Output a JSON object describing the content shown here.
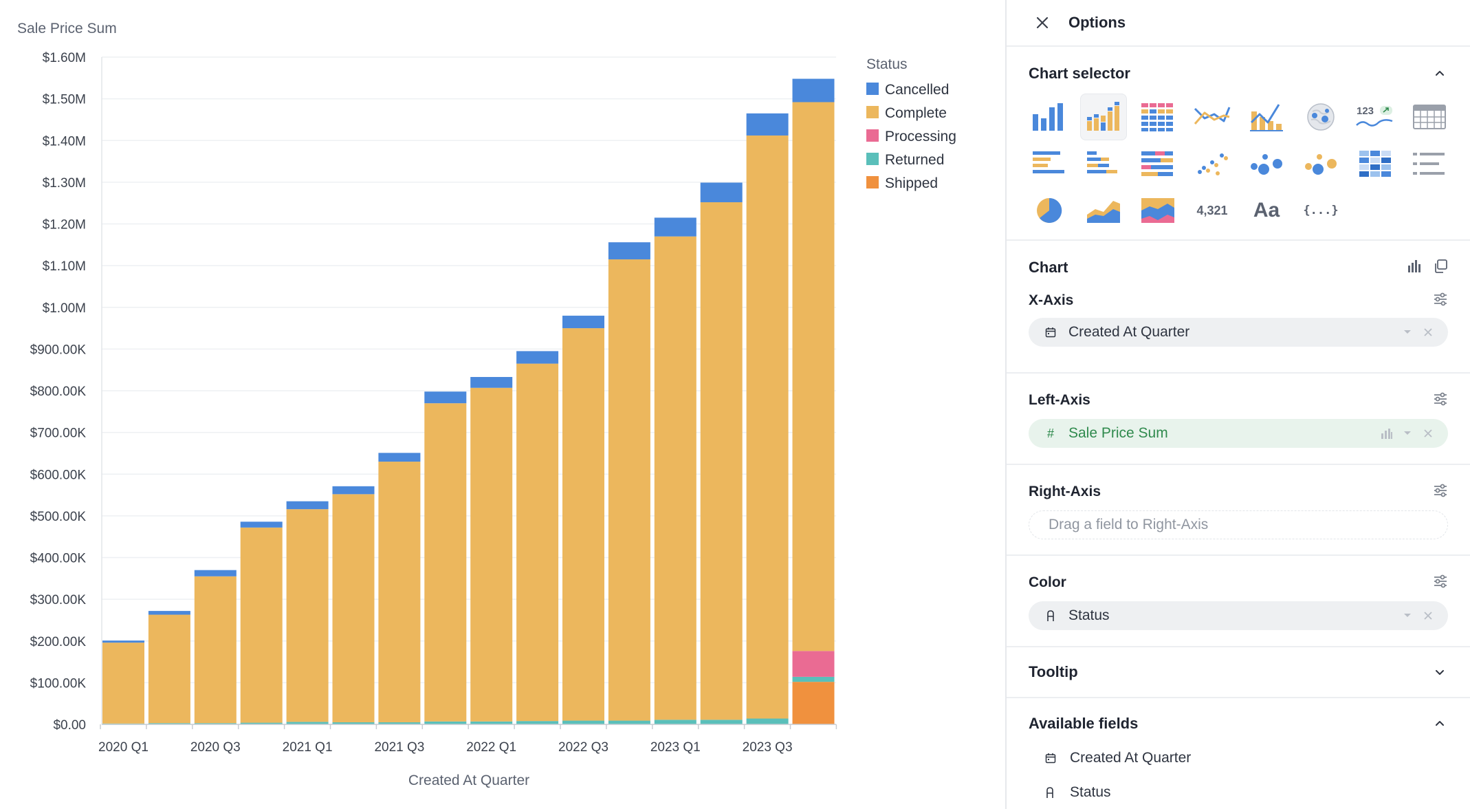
{
  "chart_data": {
    "type": "bar",
    "stacked": true,
    "title": "Sale Price Sum",
    "xlabel": "Created At Quarter",
    "ylabel": "Sale Price Sum",
    "ylim": [
      0,
      1600000
    ],
    "yticks": [
      "$0.00",
      "$100.00K",
      "$200.00K",
      "$300.00K",
      "$400.00K",
      "$500.00K",
      "$600.00K",
      "$700.00K",
      "$800.00K",
      "$900.00K",
      "$1.00M",
      "$1.10M",
      "$1.20M",
      "$1.30M",
      "$1.40M",
      "$1.50M",
      "$1.60M"
    ],
    "xtick_labels": [
      "2020 Q1",
      "2020 Q3",
      "2021 Q1",
      "2021 Q3",
      "2022 Q1",
      "2022 Q3",
      "2023 Q1",
      "2023 Q3"
    ],
    "categories": [
      "2020 Q1",
      "2020 Q2",
      "2020 Q3",
      "2020 Q4",
      "2021 Q1",
      "2021 Q2",
      "2021 Q3",
      "2021 Q4",
      "2022 Q1",
      "2022 Q2",
      "2022 Q3",
      "2022 Q4",
      "2023 Q1",
      "2023 Q2",
      "2023 Q3",
      "2023 Q4"
    ],
    "legend_title": "Status",
    "legend_position": "top-right",
    "grid": true,
    "series": [
      {
        "name": "Shipped",
        "color": "#f0913e",
        "values": [
          0,
          0,
          0,
          0,
          0,
          0,
          0,
          0,
          0,
          0,
          0,
          0,
          0,
          0,
          0,
          102000
        ]
      },
      {
        "name": "Returned",
        "color": "#5abfba",
        "values": [
          2000,
          3000,
          3000,
          4000,
          6000,
          5000,
          5000,
          7000,
          7000,
          8000,
          9000,
          9000,
          11000,
          11000,
          14000,
          12000
        ]
      },
      {
        "name": "Processing",
        "color": "#ea6b93",
        "values": [
          0,
          0,
          0,
          0,
          0,
          0,
          0,
          0,
          0,
          0,
          0,
          0,
          0,
          0,
          0,
          62000
        ]
      },
      {
        "name": "Complete",
        "color": "#ecb75d",
        "values": [
          194000,
          260000,
          352000,
          468000,
          510000,
          547000,
          625000,
          763000,
          800000,
          857000,
          941000,
          1106000,
          1159000,
          1241000,
          1398000,
          1316000
        ]
      },
      {
        "name": "Cancelled",
        "color": "#4a88db",
        "values": [
          5000,
          9000,
          15000,
          14000,
          19000,
          19000,
          21000,
          28000,
          26000,
          30000,
          30000,
          41000,
          45000,
          47000,
          53000,
          56000
        ]
      }
    ],
    "legend_order": [
      "Cancelled",
      "Complete",
      "Processing",
      "Returned",
      "Shipped"
    ]
  },
  "panel": {
    "title": "Options",
    "chart_selector": {
      "title": "Chart selector",
      "icons": [
        "bar-chart",
        "stacked-bar-chart",
        "heat-grid-chart",
        "line-chart",
        "combo-chart",
        "map-chart",
        "big-number-trend",
        "table",
        "horizontal-bar-chart",
        "horizontal-stacked-bar-chart",
        "horizontal-percent-bar-chart",
        "scatter-chart",
        "bubble-chart",
        "bubble-multi-chart",
        "heatmap",
        "list",
        "pie-chart",
        "area-chart",
        "stacked-area-chart",
        "big-number",
        "text",
        "json"
      ],
      "big_number_text": "4,321",
      "text_label": "Aa",
      "json_label": "{...}",
      "trend_number": "123"
    },
    "chart": {
      "title": "Chart",
      "x_axis": {
        "label": "X-Axis",
        "field": "Created At Quarter"
      },
      "left_axis": {
        "label": "Left-Axis",
        "field": "Sale Price Sum",
        "field_icon": "#"
      },
      "right_axis": {
        "label": "Right-Axis",
        "placeholder": "Drag a field to Right-Axis"
      },
      "color": {
        "label": "Color",
        "field": "Status"
      }
    },
    "tooltip": {
      "title": "Tooltip"
    },
    "available_fields": {
      "title": "Available fields",
      "fields": [
        "Created At Quarter",
        "Status"
      ]
    },
    "colors": {
      "accent_green": "#2f8a4d",
      "panel_border": "#e6e8ec"
    }
  }
}
